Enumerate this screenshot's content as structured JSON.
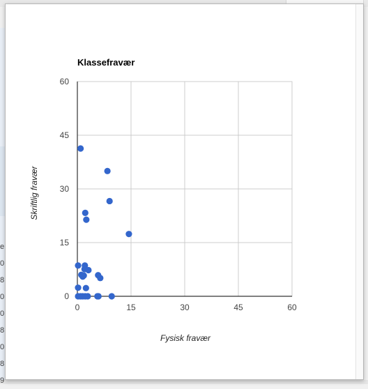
{
  "chart_data": {
    "type": "scatter",
    "title": "Klassefravær",
    "xlabel": "Fysisk fravær",
    "ylabel": "Skriftlig fravær",
    "xlim": [
      0,
      60
    ],
    "ylim": [
      0,
      60
    ],
    "x_ticks": [
      "0",
      "15",
      "30",
      "45",
      "60"
    ],
    "y_ticks": [
      "0",
      "15",
      "30",
      "45",
      "60"
    ],
    "grid": true,
    "legend": "none",
    "point_color": "#3366cc",
    "points": [
      {
        "x": 0.9,
        "y": 41.3
      },
      {
        "x": 8.4,
        "y": 35.0
      },
      {
        "x": 9.0,
        "y": 26.6
      },
      {
        "x": 2.2,
        "y": 23.3
      },
      {
        "x": 2.5,
        "y": 21.4
      },
      {
        "x": 14.4,
        "y": 17.4
      },
      {
        "x": 0.2,
        "y": 8.6
      },
      {
        "x": 2.1,
        "y": 8.6
      },
      {
        "x": 2.0,
        "y": 7.6
      },
      {
        "x": 3.1,
        "y": 7.3
      },
      {
        "x": 1.1,
        "y": 6.0
      },
      {
        "x": 1.8,
        "y": 5.8
      },
      {
        "x": 1.5,
        "y": 5.5
      },
      {
        "x": 5.8,
        "y": 5.9
      },
      {
        "x": 6.4,
        "y": 5.1
      },
      {
        "x": 0.2,
        "y": 2.4
      },
      {
        "x": 2.4,
        "y": 2.3
      },
      {
        "x": 0.2,
        "y": 0.0
      },
      {
        "x": 0.9,
        "y": 0.0
      },
      {
        "x": 1.5,
        "y": 0.0
      },
      {
        "x": 2.2,
        "y": 0.0
      },
      {
        "x": 2.9,
        "y": 0.0
      },
      {
        "x": 5.6,
        "y": 0.0
      },
      {
        "x": 5.9,
        "y": 0.0
      },
      {
        "x": 9.6,
        "y": 0.0
      }
    ]
  },
  "sidebar_fragment": {
    "digits": [
      "e",
      "0",
      "8",
      "0",
      "0",
      "8",
      "0",
      "8",
      "9"
    ]
  }
}
